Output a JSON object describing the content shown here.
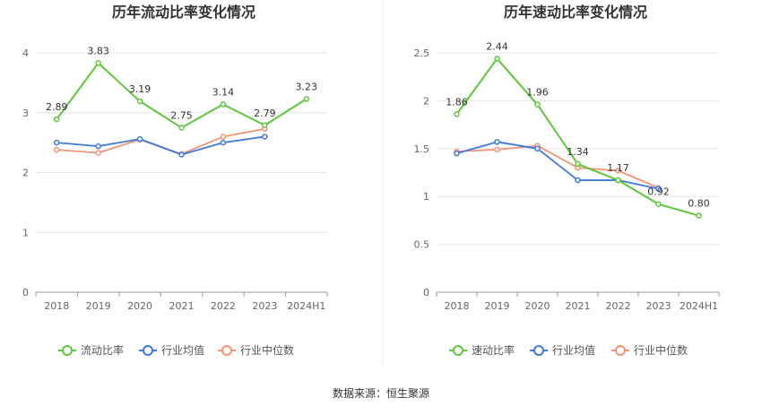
{
  "source_label": "数据来源：恒生聚源",
  "colors": {
    "primary": "#5cc83a",
    "industry_avg": "#3d78db",
    "industry_median": "#f29373",
    "grid": "#e6e6e6",
    "axis": "#999999"
  },
  "chart_data": [
    {
      "type": "line",
      "title": "历年流动比率变化情况",
      "categories": [
        "2018",
        "2019",
        "2020",
        "2021",
        "2022",
        "2023",
        "2024H1"
      ],
      "ylim": [
        0,
        4
      ],
      "yticks": [
        0,
        1,
        2,
        3,
        4
      ],
      "grid": true,
      "legend_position": "bottom",
      "series": [
        {
          "name": "流动比率",
          "values": [
            2.89,
            3.83,
            3.19,
            2.75,
            3.14,
            2.79,
            3.23
          ],
          "labels": [
            "2.89",
            "3.83",
            "3.19",
            "2.75",
            "3.14",
            "2.79",
            "3.23"
          ]
        },
        {
          "name": "行业均值",
          "values": [
            2.5,
            2.44,
            2.56,
            2.3,
            2.5,
            2.6,
            null
          ]
        },
        {
          "name": "行业中位数",
          "values": [
            2.38,
            2.33,
            2.55,
            2.31,
            2.6,
            2.73,
            null
          ]
        }
      ]
    },
    {
      "type": "line",
      "title": "历年速动比率变化情况",
      "categories": [
        "2018",
        "2019",
        "2020",
        "2021",
        "2022",
        "2023",
        "2024H1"
      ],
      "ylim": [
        0,
        2.5
      ],
      "yticks": [
        0,
        0.5,
        1,
        1.5,
        2,
        2.5
      ],
      "grid": true,
      "legend_position": "bottom",
      "series": [
        {
          "name": "速动比率",
          "values": [
            1.86,
            2.44,
            1.96,
            1.34,
            1.17,
            0.92,
            0.8
          ],
          "labels": [
            "1.86",
            "2.44",
            "1.96",
            "1.34",
            "1.17",
            "0.92",
            "0.80"
          ]
        },
        {
          "name": "行业均值",
          "values": [
            1.45,
            1.57,
            1.5,
            1.17,
            1.17,
            1.08,
            null
          ]
        },
        {
          "name": "行业中位数",
          "values": [
            1.47,
            1.49,
            1.53,
            1.3,
            1.27,
            1.09,
            null
          ]
        }
      ]
    }
  ]
}
